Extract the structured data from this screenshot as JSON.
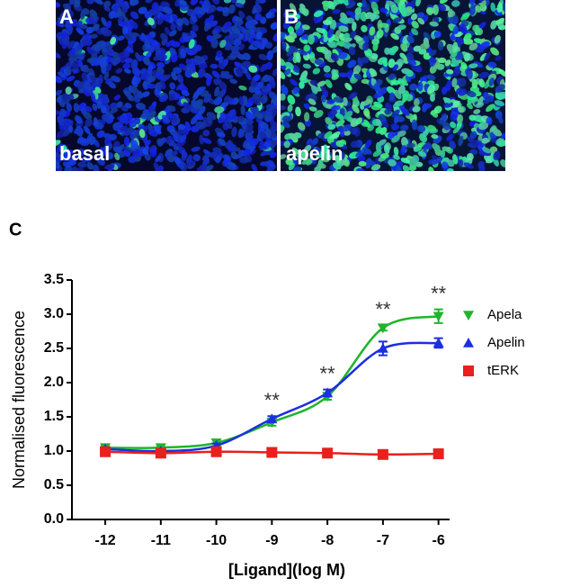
{
  "panels": [
    {
      "label": "A",
      "caption": "basal"
    },
    {
      "label": "B",
      "caption": "apelin"
    }
  ],
  "chart_data": {
    "type": "line",
    "panel_label": "C",
    "x_label": "[Ligand](log M)",
    "y_label": "Normalised fluorescence",
    "x": [
      -12,
      -11,
      -10,
      -9,
      -8,
      -7,
      -6
    ],
    "series": [
      {
        "name": "Apela",
        "color": "#1fb52a",
        "marker": "triangle-down",
        "values": [
          1.05,
          1.05,
          1.12,
          1.42,
          1.8,
          2.8,
          2.97
        ],
        "errors": [
          0.02,
          0.02,
          0.05,
          0.05,
          0.05,
          0.04,
          0.1
        ]
      },
      {
        "name": "Apelin",
        "color": "#1c2fe0",
        "marker": "triangle-up",
        "values": [
          1.03,
          1.0,
          1.08,
          1.47,
          1.85,
          2.5,
          2.58
        ],
        "errors": [
          0.02,
          0.02,
          0.03,
          0.04,
          0.05,
          0.1,
          0.07
        ]
      },
      {
        "name": "tERK",
        "color": "#e8201e",
        "marker": "square",
        "values": [
          0.99,
          0.97,
          0.99,
          0.98,
          0.97,
          0.95,
          0.96
        ],
        "errors": [
          0.01,
          0.01,
          0.01,
          0.01,
          0.01,
          0.01,
          0.01
        ]
      }
    ],
    "annotations": [
      {
        "x": -9,
        "text": "**"
      },
      {
        "x": -8,
        "text": "**"
      },
      {
        "x": -7,
        "text": "**"
      },
      {
        "x": -6,
        "text": "**"
      }
    ],
    "xlim": [
      -12.6,
      -5.8
    ],
    "xticks": [
      -12,
      -11,
      -10,
      -9,
      -8,
      -7,
      -6
    ],
    "ylim": [
      0,
      3.5
    ],
    "yticks": [
      {
        "value": 0,
        "label": "0.0"
      },
      {
        "value": 0.5,
        "label": "0.5"
      },
      {
        "value": 1,
        "label": "1.0"
      },
      {
        "value": 1.5,
        "label": "1.5"
      },
      {
        "value": 2,
        "label": "2.0"
      },
      {
        "value": 2.5,
        "label": "2.5"
      },
      {
        "value": 3,
        "label": "3.0"
      },
      {
        "value": 3.5,
        "label": "3.5"
      }
    ],
    "legend": "right",
    "grid": false
  }
}
